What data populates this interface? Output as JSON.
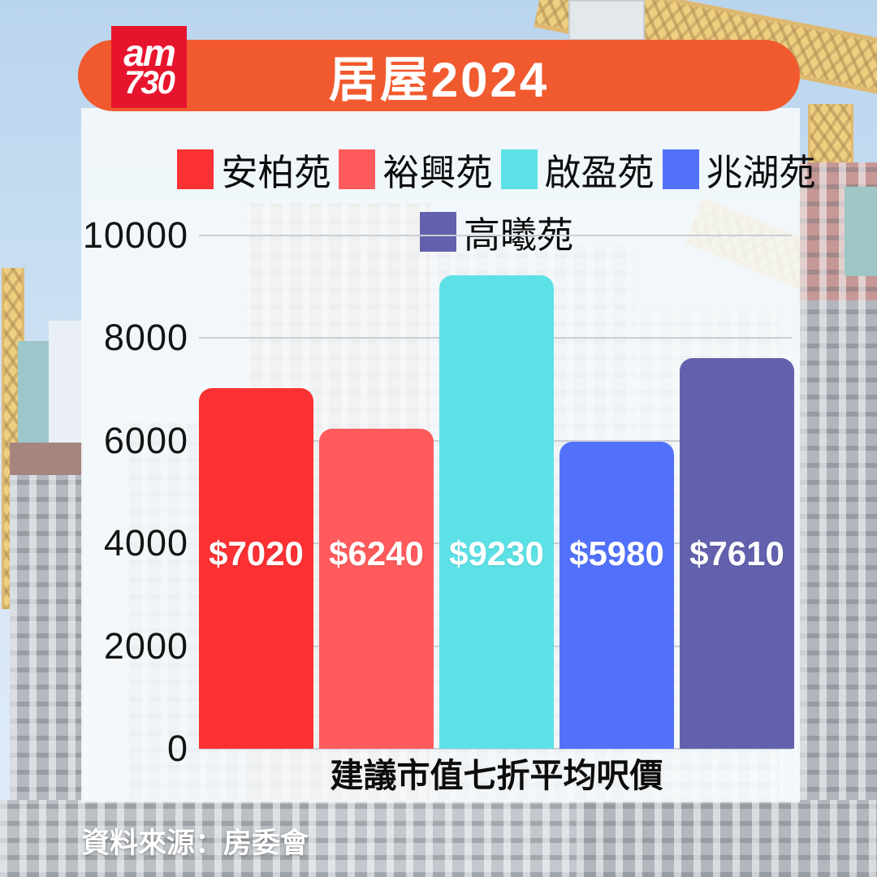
{
  "header": {
    "logo_line1": "am",
    "logo_line2": "730",
    "title": "居屋2024"
  },
  "chart_data": {
    "type": "bar",
    "title": "居屋2024",
    "categories": [
      "安柏苑",
      "裕興苑",
      "啟盈苑",
      "兆湖苑",
      "高曦苑"
    ],
    "values": [
      7020,
      6240,
      9230,
      5980,
      7610
    ],
    "bar_labels": [
      "$7020",
      "$6240",
      "$9230",
      "$5980",
      "$7610"
    ],
    "colors": [
      "#fb3133",
      "#ff5a5c",
      "#5ce1e6",
      "#5271fb",
      "#6361ad"
    ],
    "xlabel": "建議市值七折平均呎價",
    "ylabel": "",
    "ylim": [
      0,
      10000
    ],
    "yticks": [
      0,
      2000,
      4000,
      6000,
      8000,
      10000
    ],
    "grid": true,
    "legend_position": "top"
  },
  "footer": {
    "source": "資料來源：房委會"
  },
  "colors": {
    "banner_orange": "#f15a2e",
    "title_shadow_red": "#d93a2c",
    "logo_red": "#e7142d",
    "gridline": "#c9ced6",
    "panel": "rgba(247,250,252,0.87)"
  }
}
